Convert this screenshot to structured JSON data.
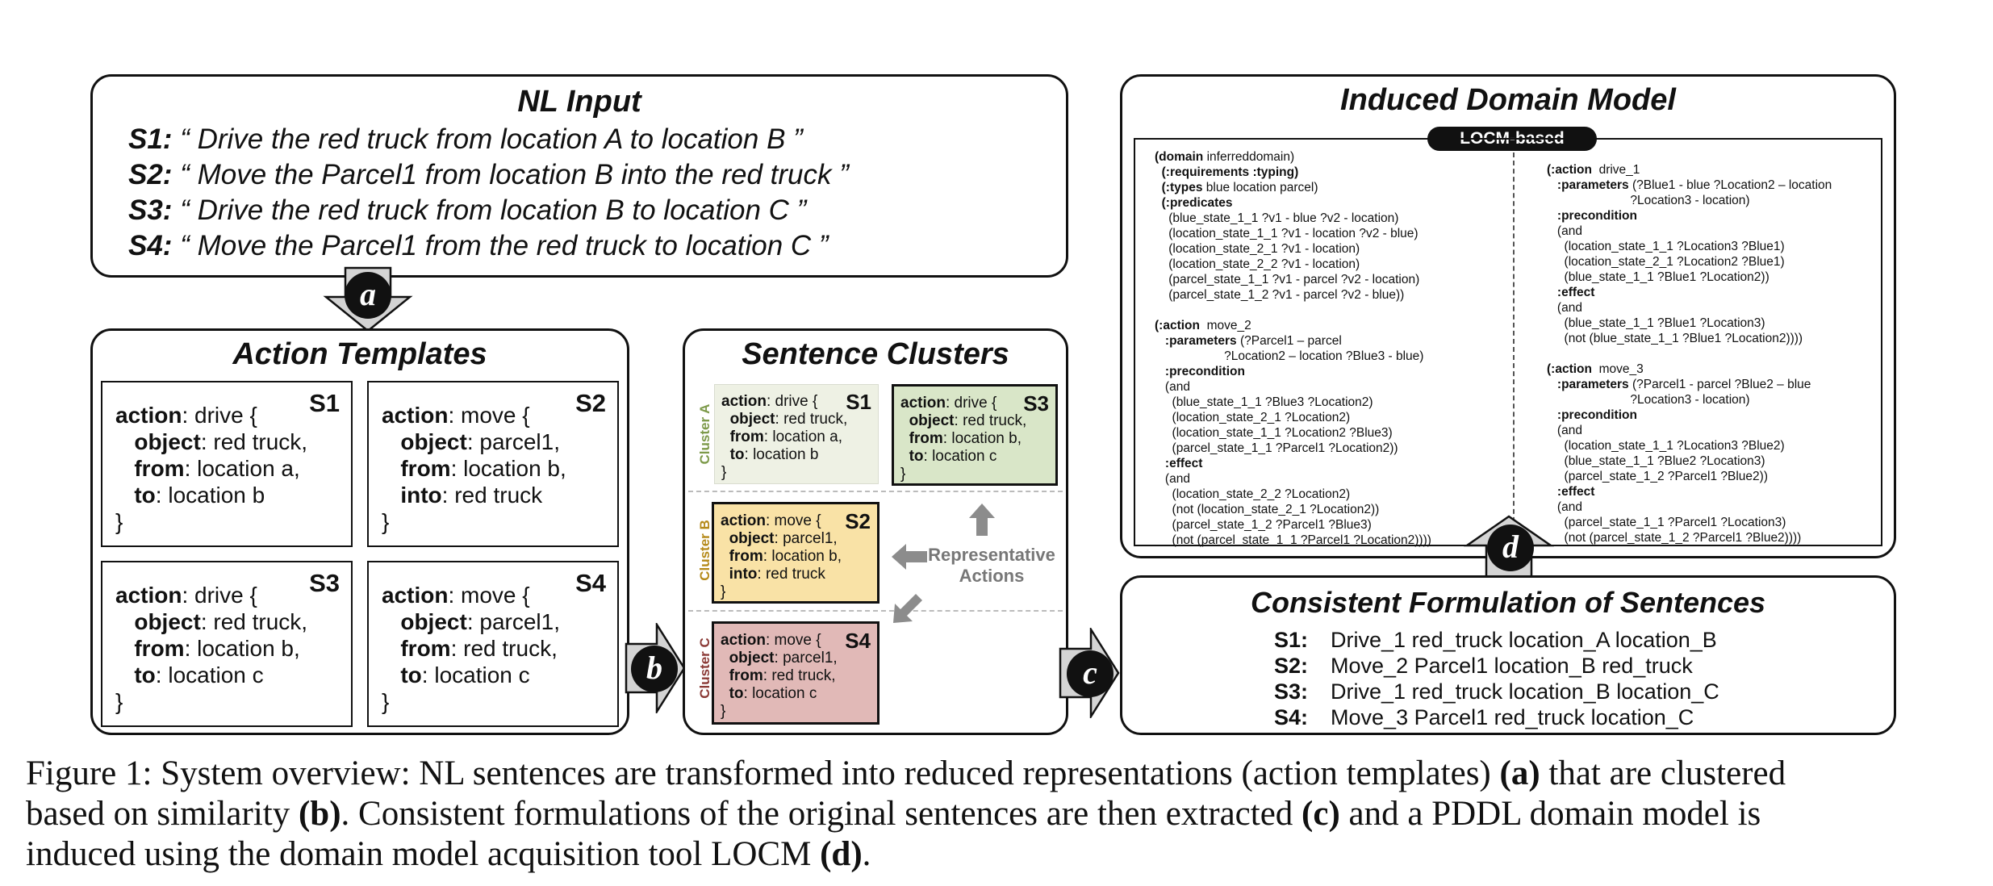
{
  "nl_input": {
    "title": "NL Input",
    "lines": [
      {
        "id": "S1:",
        "text": "“ Drive the red truck from location A to location B ”"
      },
      {
        "id": "S2:",
        "text": "“ Move the Parcel1 from location B into the red truck ”"
      },
      {
        "id": "S3:",
        "text": "“ Drive the red truck from location B to location C ”"
      },
      {
        "id": "S4:",
        "text": "“ Move the Parcel1 from the red truck to location C ”"
      }
    ]
  },
  "action_templates": {
    "title": "Action Templates",
    "items": [
      {
        "sid": "S1",
        "action": "drive {",
        "arg1k": "object",
        "arg1v": "red truck,",
        "arg2k": "from",
        "arg2v": "location a,",
        "arg3k": "to",
        "arg3v": "location b"
      },
      {
        "sid": "S2",
        "action": "move {",
        "arg1k": "object",
        "arg1v": "parcel1,",
        "arg2k": "from",
        "arg2v": "location b,",
        "arg3k": "into",
        "arg3v": "red truck"
      },
      {
        "sid": "S3",
        "action": "drive {",
        "arg1k": "object",
        "arg1v": "red truck,",
        "arg2k": "from",
        "arg2v": "location b,",
        "arg3k": "to",
        "arg3v": "location c"
      },
      {
        "sid": "S4",
        "action": "move {",
        "arg1k": "object",
        "arg1v": "parcel1,",
        "arg2k": "from",
        "arg2v": "red truck,",
        "arg3k": "to",
        "arg3v": "location c"
      }
    ],
    "action_key": "action",
    "close_brace": "}"
  },
  "sentence_clusters": {
    "title": "Sentence Clusters",
    "cluster_a": "Cluster A",
    "cluster_b": "Cluster B",
    "cluster_c": "Cluster C",
    "representative_line1": "Representative",
    "representative_line2": "Actions",
    "boxes": [
      {
        "sid": "S1",
        "action": "drive {",
        "arg1k": "object",
        "arg1v": "red truck,",
        "arg2k": "from",
        "arg2v": "location a,",
        "arg3k": "to",
        "arg3v": "location b"
      },
      {
        "sid": "S3",
        "action": "drive {",
        "arg1k": "object",
        "arg1v": "red truck,",
        "arg2k": "from",
        "arg2v": "location b,",
        "arg3k": "to",
        "arg3v": "location c"
      },
      {
        "sid": "S2",
        "action": "move {",
        "arg1k": "object",
        "arg1v": "parcel1,",
        "arg2k": "from",
        "arg2v": "location b,",
        "arg3k": "into",
        "arg3v": "red truck"
      },
      {
        "sid": "S4",
        "action": "move {",
        "arg1k": "object",
        "arg1v": "parcel1,",
        "arg2k": "from",
        "arg2v": "red truck,",
        "arg3k": "to",
        "arg3v": "location c"
      }
    ],
    "colors": {
      "cluster_a_fill": "#eef1e4",
      "cluster_a_rep": "#d9e6c8",
      "cluster_b_fill": "#f9e2a6",
      "cluster_c_fill": "#e1b9b7",
      "cluster_a_text": "#7d9a4a",
      "cluster_b_text": "#b58a1a",
      "cluster_c_text": "#8b3a36"
    }
  },
  "induced_domain": {
    "title": "Induced Domain Model",
    "tag": "LOCM-based",
    "left_lines": [
      "(domain inferreddomain)",
      "  (:requirements :typing)",
      "  (:types blue location parcel)",
      "  (:predicates",
      "    (blue_state_1_1 ?v1 - blue ?v2 - location)",
      "    (location_state_1_1 ?v1 - location ?v2 - blue)",
      "    (location_state_2_1 ?v1 - location)",
      "    (location_state_2_2 ?v1 - location)",
      "    (parcel_state_1_1 ?v1 - parcel ?v2 - location)",
      "    (parcel_state_1_2 ?v1 - parcel ?v2 - blue))",
      "",
      "(:action  move_2",
      "   :parameters (?Parcel1 – parcel",
      "                    ?Location2 – location ?Blue3 - blue)",
      "   :precondition",
      "   (and",
      "     (blue_state_1_1 ?Blue3 ?Location2)",
      "     (location_state_2_1 ?Location2)",
      "     (location_state_1_1 ?Location2 ?Blue3)",
      "     (parcel_state_1_1 ?Parcel1 ?Location2))",
      "   :effect",
      "   (and",
      "     (location_state_2_2 ?Location2)",
      "     (not (location_state_2_1 ?Location2))",
      "     (parcel_state_1_2 ?Parcel1 ?Blue3)",
      "     (not (parcel_state_1_1 ?Parcel1 ?Location2))))"
    ],
    "right_lines": [
      "(:action  drive_1",
      "   :parameters (?Blue1 - blue ?Location2 – location",
      "                        ?Location3 - location)",
      "   :precondition",
      "   (and",
      "     (location_state_1_1 ?Location3 ?Blue1)",
      "     (location_state_2_1 ?Location2 ?Blue1)",
      "     (blue_state_1_1 ?Blue1 ?Location2))",
      "   :effect",
      "   (and",
      "     (blue_state_1_1 ?Blue1 ?Location3)",
      "     (not (blue_state_1_1 ?Blue1 ?Location2))))",
      "",
      "(:action  move_3",
      "   :parameters (?Parcel1 - parcel ?Blue2 – blue",
      "                        ?Location3 - location)",
      "   :precondition",
      "   (and",
      "     (location_state_1_1 ?Location3 ?Blue2)",
      "     (blue_state_1_1 ?Blue2 ?Location3)",
      "     (parcel_state_1_2 ?Parcel1 ?Blue2))",
      "   :effect",
      "   (and",
      "     (parcel_state_1_1 ?Parcel1 ?Location3)",
      "     (not (parcel_state_1_2 ?Parcel1 ?Blue2))))"
    ]
  },
  "consistent_formulation": {
    "title": "Consistent Formulation of Sentences",
    "rows": [
      {
        "id": "S1:",
        "text": "Drive_1 red_truck location_A location_B"
      },
      {
        "id": "S2:",
        "text": "Move_2 Parcel1 location_B red_truck"
      },
      {
        "id": "S3:",
        "text": "Drive_1 red_truck location_B location_C"
      },
      {
        "id": "S4:",
        "text": "Move_3 Parcel1 red_truck location_C"
      }
    ]
  },
  "badges": {
    "a": "a",
    "b": "b",
    "c": "c",
    "d": "d"
  },
  "caption": {
    "line1_pre": "Figure 1:  System overview: NL sentences are transformed into reduced representations (action templates) ",
    "line1_a": "(a)",
    "line1_post": " that are clustered",
    "line2_pre": "based on similarity ",
    "line2_b": "(b)",
    "line2_mid": ". Consistent formulations of the original sentences are then extracted ",
    "line2_c": "(c)",
    "line2_post": " and a PDDL domain model is",
    "line3_pre": "induced using the domain model acquisition tool LOCM ",
    "line3_d": "(d)",
    "line3_post": "."
  }
}
